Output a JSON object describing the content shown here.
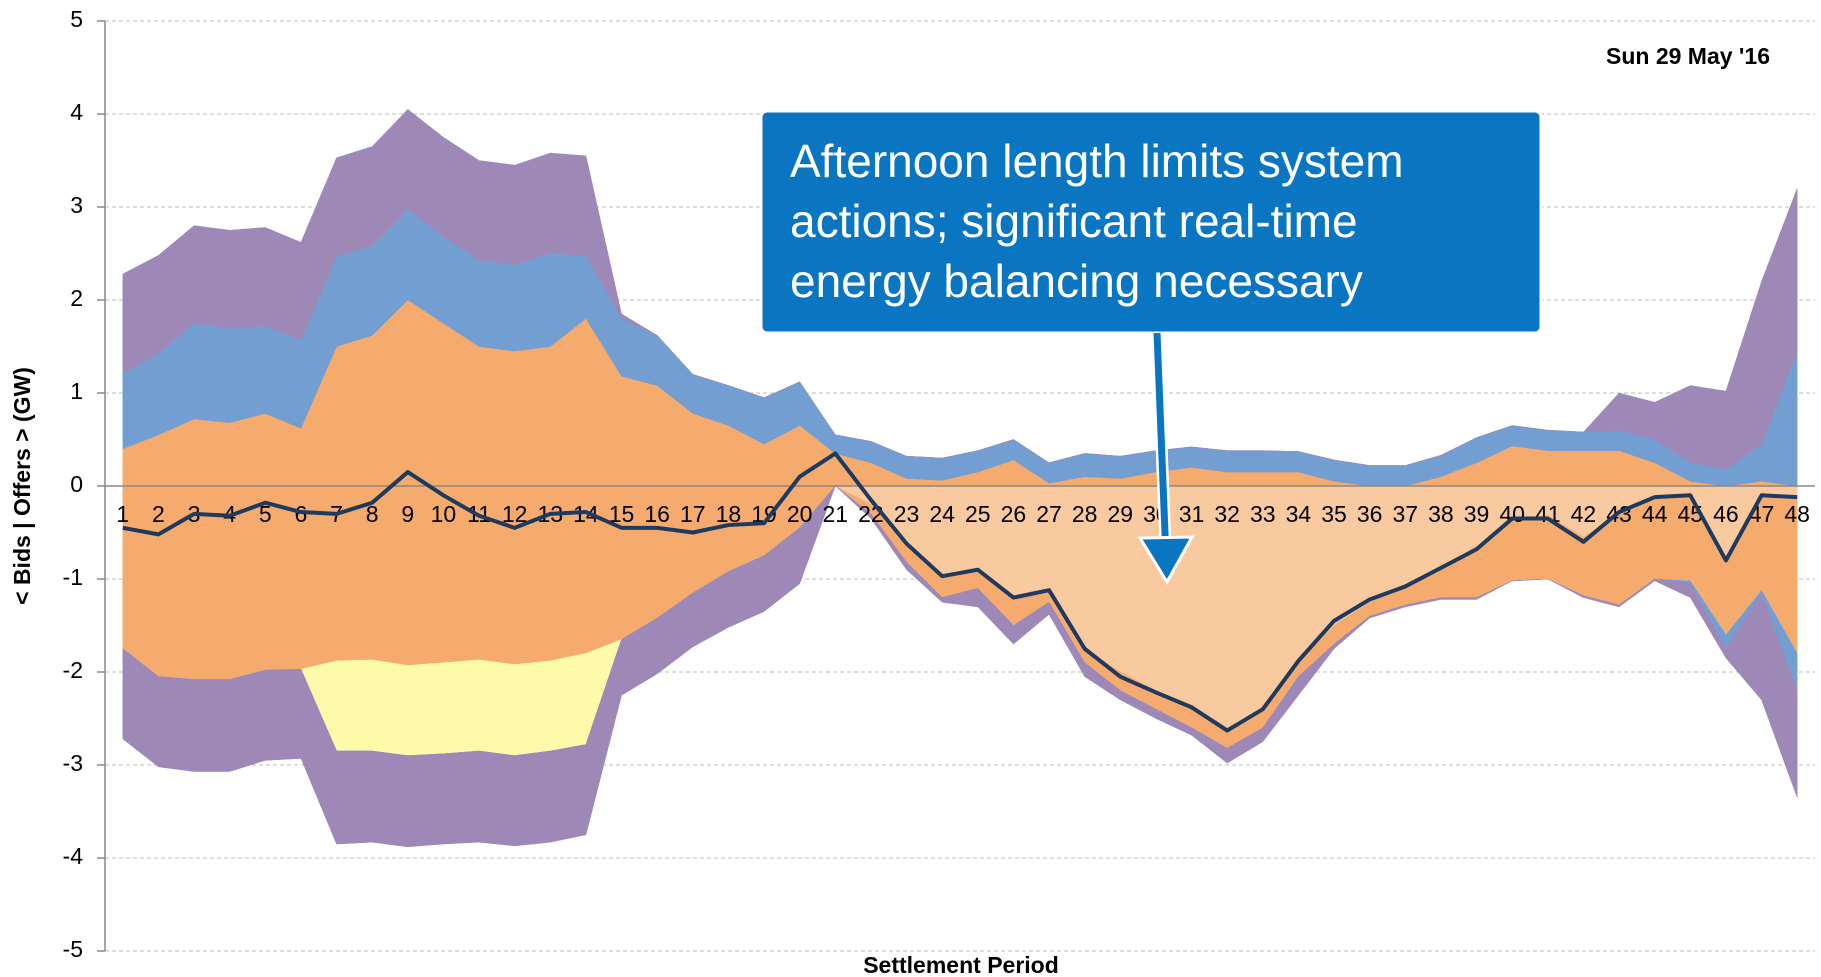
{
  "chart_data": {
    "type": "area",
    "annotation": "Sun 29 May '16",
    "callout": [
      "Afternoon length limits system",
      "actions; significant real-time",
      "energy balancing necessary"
    ],
    "xlabel": "Settlement Period",
    "ylabel": "< Bids | Offers > (GW)",
    "ylim": [
      -5,
      5
    ],
    "yticks": [
      -5,
      -4,
      -3,
      -2,
      -1,
      0,
      1,
      2,
      3,
      4,
      5
    ],
    "grid": true,
    "categories": [
      1,
      2,
      3,
      4,
      5,
      6,
      7,
      8,
      9,
      10,
      11,
      12,
      13,
      14,
      15,
      16,
      17,
      18,
      19,
      20,
      21,
      22,
      23,
      24,
      25,
      26,
      27,
      28,
      29,
      30,
      31,
      32,
      33,
      34,
      35,
      36,
      37,
      38,
      39,
      40,
      41,
      42,
      43,
      44,
      45,
      46,
      47,
      48
    ],
    "series": [
      {
        "type": "area",
        "color": "#f5aa6e",
        "values": [
          0.4,
          0.55,
          0.72,
          0.68,
          0.78,
          0.62,
          1.5,
          1.62,
          2.0,
          1.75,
          1.5,
          1.45,
          1.5,
          1.8,
          1.18,
          1.08,
          0.78,
          0.65,
          0.45,
          0.65,
          0.35,
          0.25,
          0.08,
          0.06,
          0.15,
          0.28,
          0.03,
          0.1,
          0.08,
          0.15,
          0.2,
          0.15,
          0.15,
          0.15,
          0.05,
          0,
          0,
          0.1,
          0.25,
          0.43,
          0.38,
          0.38,
          0.38,
          0.25,
          0.05,
          0,
          0.05,
          0
        ]
      },
      {
        "type": "area",
        "color": "#739ed2",
        "values": [
          0.8,
          0.88,
          1.03,
          1.02,
          0.94,
          0.95,
          0.97,
          0.96,
          0.98,
          0.93,
          0.93,
          0.93,
          1.0,
          0.68,
          0.62,
          0.54,
          0.42,
          0.43,
          0.5,
          0.47,
          0.2,
          0.23,
          0.24,
          0.24,
          0.23,
          0.22,
          0.22,
          0.25,
          0.24,
          0.23,
          0.22,
          0.23,
          0.23,
          0.22,
          0.23,
          0.22,
          0.22,
          0.23,
          0.27,
          0.22,
          0.22,
          0.2,
          0.22,
          0.25,
          0.2,
          0.18,
          0.4,
          1.45
        ]
      },
      {
        "type": "area",
        "color": "#9d88b8",
        "values": [
          1.08,
          1.05,
          1.05,
          1.05,
          1.06,
          1.05,
          1.06,
          1.07,
          1.07,
          1.07,
          1.07,
          1.07,
          1.08,
          1.07,
          0.05,
          0,
          0,
          0,
          0,
          0,
          0,
          0,
          0,
          0,
          0,
          0,
          0,
          0,
          0,
          0,
          0,
          0,
          0,
          0,
          0,
          0,
          0,
          0,
          0,
          0,
          0,
          0,
          0.4,
          0.4,
          0.83,
          0.84,
          1.75,
          1.75
        ]
      },
      {
        "type": "area",
        "color": "#f9c9a0",
        "values": [
          0,
          0,
          0,
          0,
          0,
          0,
          0,
          0,
          0,
          0,
          0,
          0,
          0,
          0,
          0,
          0,
          0,
          0,
          0,
          0,
          0,
          -0.2,
          -0.6,
          -0.95,
          -0.9,
          -1.2,
          -1.1,
          -1.75,
          -2.0,
          -2.2,
          -2.35,
          -2.6,
          -2.4,
          -1.9,
          -1.5,
          -1.25,
          -1.1,
          -0.88,
          -0.65,
          -0.35,
          -0.32,
          -0.55,
          -0.3,
          -0.12,
          -0.1,
          -0.8,
          -0.1,
          -0.12
        ]
      },
      {
        "type": "area",
        "color": "#f5aa6e",
        "values": [
          -1.75,
          -2.05,
          -2.08,
          -2.08,
          -1.98,
          -1.97,
          -1.88,
          -1.87,
          -1.93,
          -1.9,
          -1.87,
          -1.92,
          -1.88,
          -1.8,
          -1.65,
          -1.42,
          -1.15,
          -0.92,
          -0.75,
          -0.45,
          0,
          -0.1,
          -0.22,
          -0.25,
          -0.2,
          -0.3,
          -0.15,
          -0.15,
          -0.2,
          -0.2,
          -0.25,
          -0.22,
          -0.2,
          -0.15,
          -0.2,
          -0.15,
          -0.18,
          -0.32,
          -0.55,
          -0.67,
          -0.68,
          -0.63,
          -0.98,
          -0.88,
          -0.92,
          -0.8,
          -1.02,
          -1.68
        ]
      },
      {
        "type": "area",
        "color": "#fdfbaa",
        "values": [
          0,
          0,
          0,
          0,
          0,
          0,
          -0.97,
          -0.98,
          -0.97,
          -0.98,
          -0.98,
          -0.98,
          -0.97,
          -0.98,
          0,
          0,
          0,
          0,
          0,
          0,
          0,
          0,
          0,
          0,
          0,
          0,
          0,
          0,
          0,
          0,
          0,
          0,
          0,
          0,
          0,
          0,
          0,
          0,
          0,
          0,
          0,
          0,
          0,
          0,
          0,
          0,
          0,
          0
        ]
      },
      {
        "type": "area",
        "color": "#739ed2",
        "values": [
          0,
          0,
          0,
          0,
          0,
          0,
          0,
          0,
          0,
          0,
          0,
          0,
          0,
          0,
          0,
          0,
          0,
          0,
          0,
          0,
          0,
          0,
          0,
          0,
          0,
          0,
          0,
          0,
          0,
          0,
          0,
          0,
          0,
          0,
          0,
          0,
          0,
          0,
          0,
          0,
          0,
          0,
          0,
          0,
          -0.03,
          -0.15,
          -0.03,
          -0.4
        ]
      },
      {
        "type": "area",
        "color": "#9d88b8",
        "values": [
          -0.97,
          -0.97,
          -0.99,
          -0.99,
          -0.97,
          -0.96,
          -1.0,
          -0.98,
          -0.98,
          -0.97,
          -0.98,
          -0.97,
          -0.98,
          -0.97,
          -0.6,
          -0.6,
          -0.58,
          -0.6,
          -0.6,
          -0.6,
          0,
          -0.05,
          -0.08,
          -0.05,
          -0.2,
          -0.2,
          -0.13,
          -0.15,
          -0.1,
          -0.1,
          -0.08,
          -0.16,
          -0.15,
          -0.2,
          -0.05,
          -0.02,
          -0.02,
          -0.02,
          -0.02,
          0,
          0,
          -0.02,
          -0.02,
          -0.02,
          -0.15,
          -0.1,
          -1.15,
          -1.15
        ]
      },
      {
        "type": "line",
        "color": "#1f3a5f",
        "values": [
          -0.45,
          -0.52,
          -0.3,
          -0.32,
          -0.18,
          -0.28,
          -0.3,
          -0.18,
          0.15,
          -0.1,
          -0.32,
          -0.45,
          -0.3,
          -0.28,
          -0.45,
          -0.45,
          -0.5,
          -0.42,
          -0.4,
          0.1,
          0.35,
          -0.15,
          -0.62,
          -0.97,
          -0.9,
          -1.2,
          -1.12,
          -1.75,
          -2.05,
          -2.22,
          -2.38,
          -2.63,
          -2.4,
          -1.88,
          -1.45,
          -1.22,
          -1.08,
          -0.88,
          -0.68,
          -0.35,
          -0.35,
          -0.6,
          -0.28,
          -0.12,
          -0.1,
          -0.8,
          -0.1,
          -0.12
        ]
      }
    ]
  }
}
